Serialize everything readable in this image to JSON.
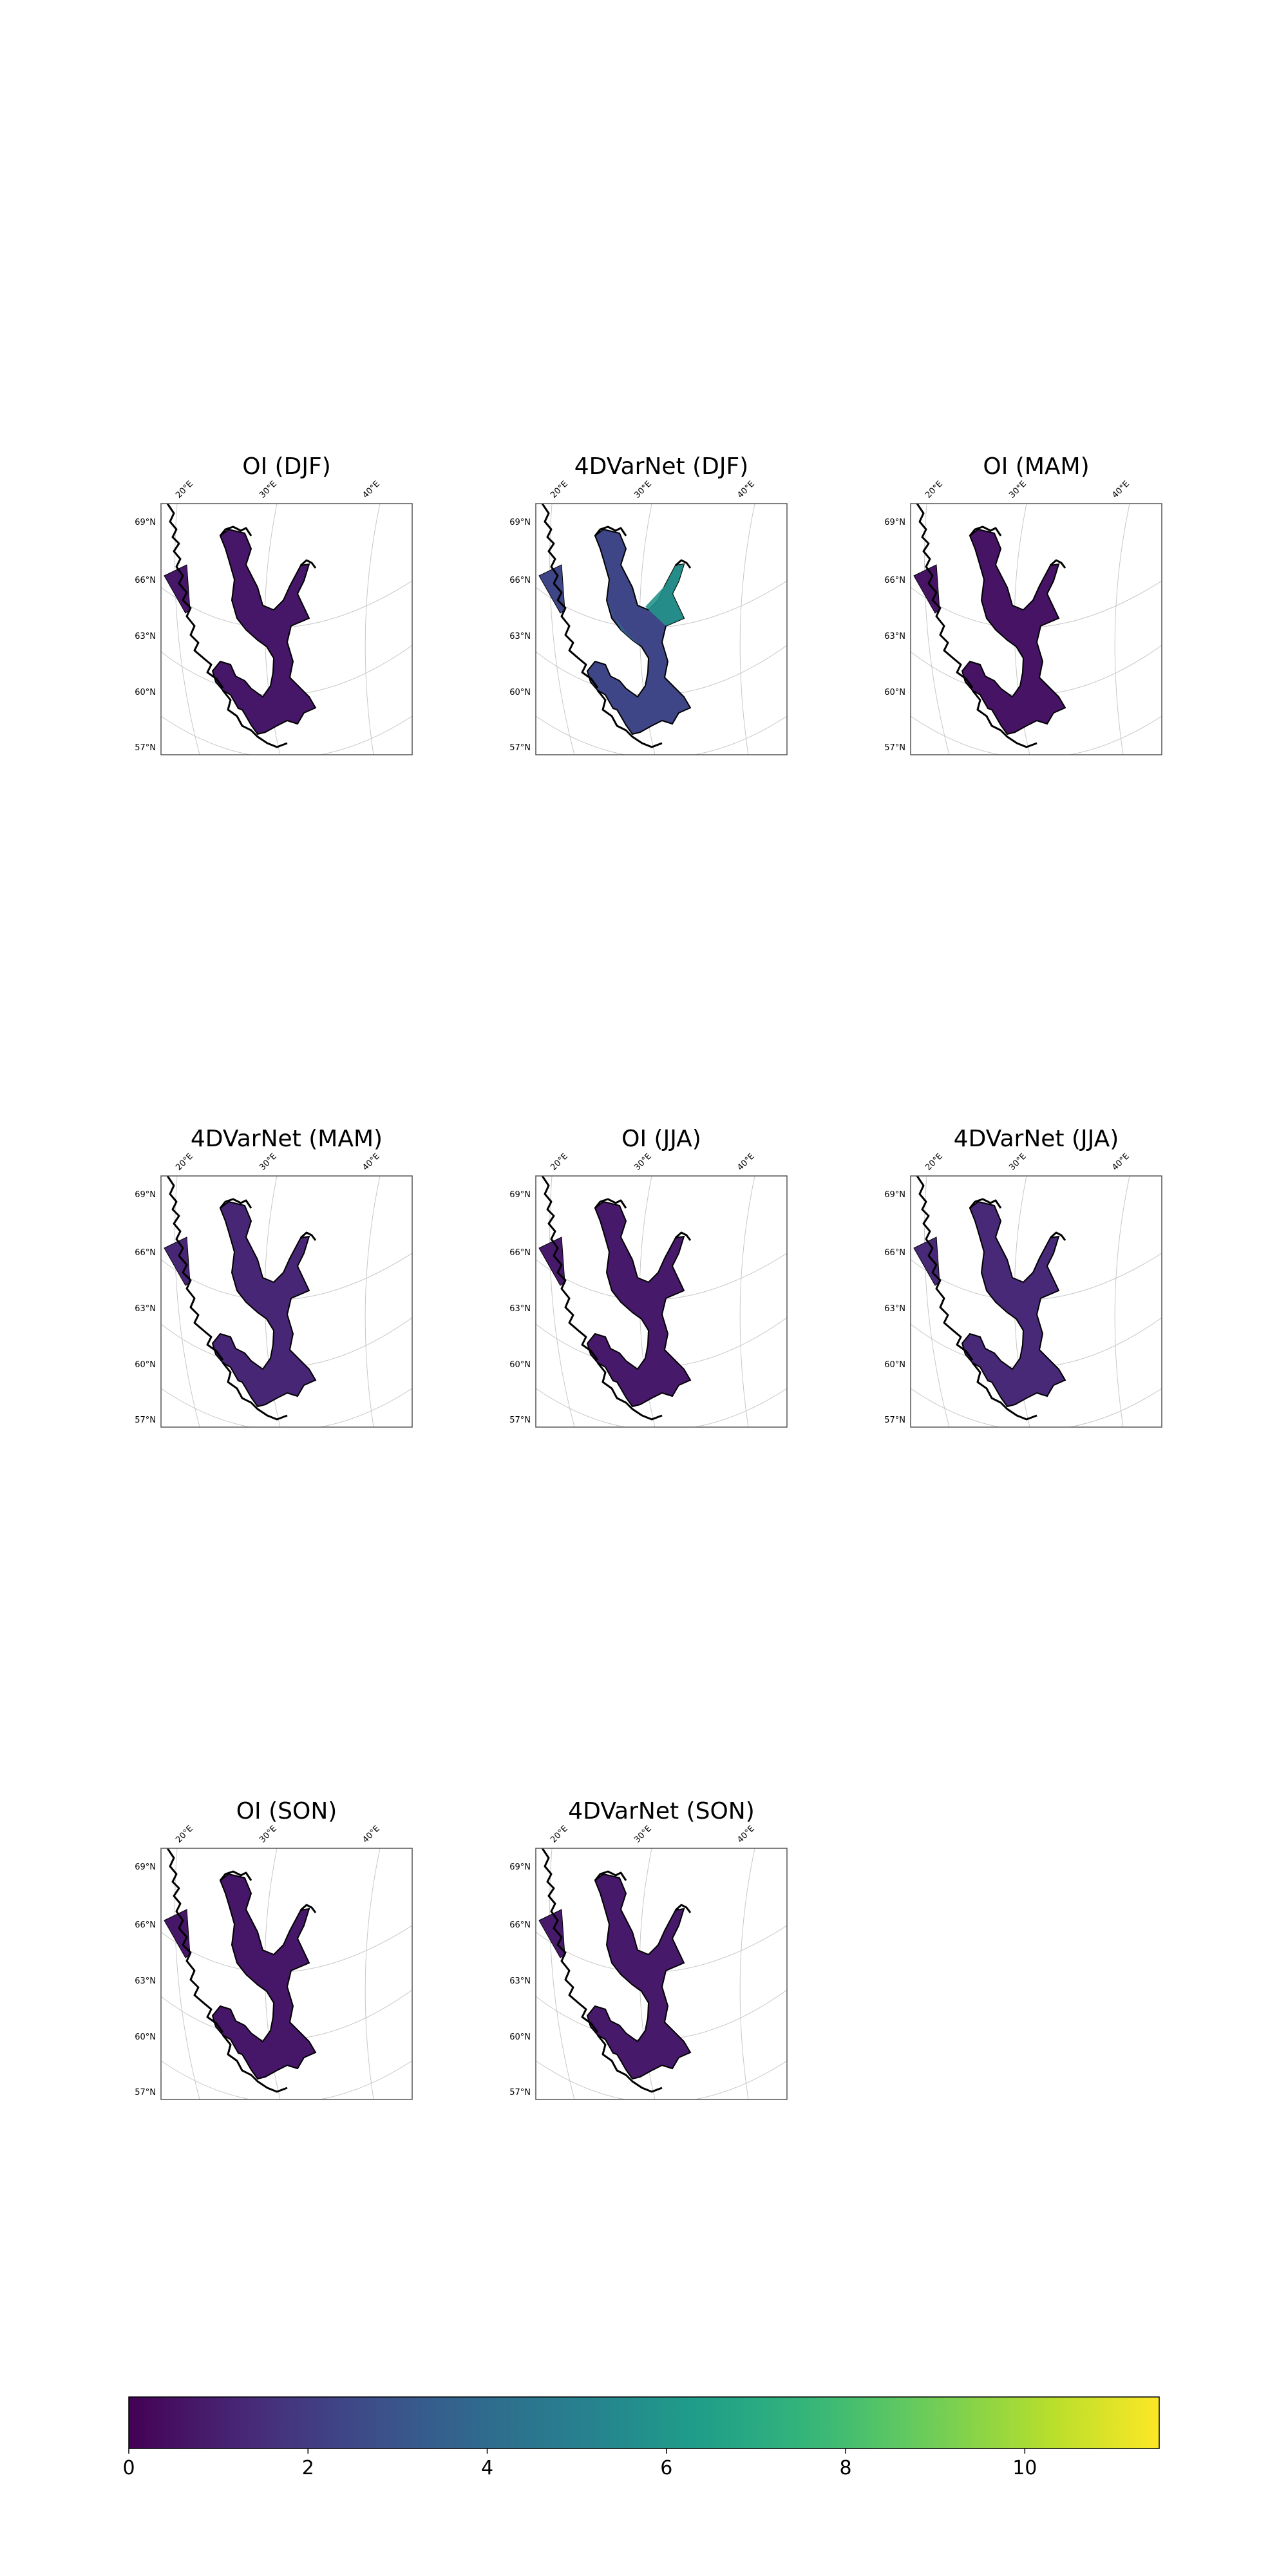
{
  "panels": [
    {
      "title": "OI (DJF)",
      "level": 0.7,
      "hot": false
    },
    {
      "title": "4DVarNet (DJF)",
      "level": 2.4,
      "hot": true
    },
    {
      "title": "OI (MAM)",
      "level": 0.6,
      "hot": false
    },
    {
      "title": "4DVarNet (MAM)",
      "level": 1.2,
      "hot": false
    },
    {
      "title": "OI (JJA)",
      "level": 0.8,
      "hot": false
    },
    {
      "title": "4DVarNet (JJA)",
      "level": 1.3,
      "hot": false
    },
    {
      "title": "OI (SON)",
      "level": 0.7,
      "hot": false
    },
    {
      "title": "4DVarNet (SON)",
      "level": 0.8,
      "hot": false
    }
  ],
  "lon_labels": [
    "20°E",
    "30°E",
    "40°E"
  ],
  "lat_labels": [
    "69°N",
    "66°N",
    "63°N",
    "60°N",
    "57°N"
  ],
  "colorbar": {
    "colormap": "viridis",
    "range": [
      0,
      11.5
    ],
    "ticks": [
      "0",
      "2",
      "4",
      "6",
      "8",
      "10"
    ]
  },
  "colors": {
    "land_outline": "#000000",
    "gridline": "#c8c8c8",
    "frame": "#555555"
  }
}
